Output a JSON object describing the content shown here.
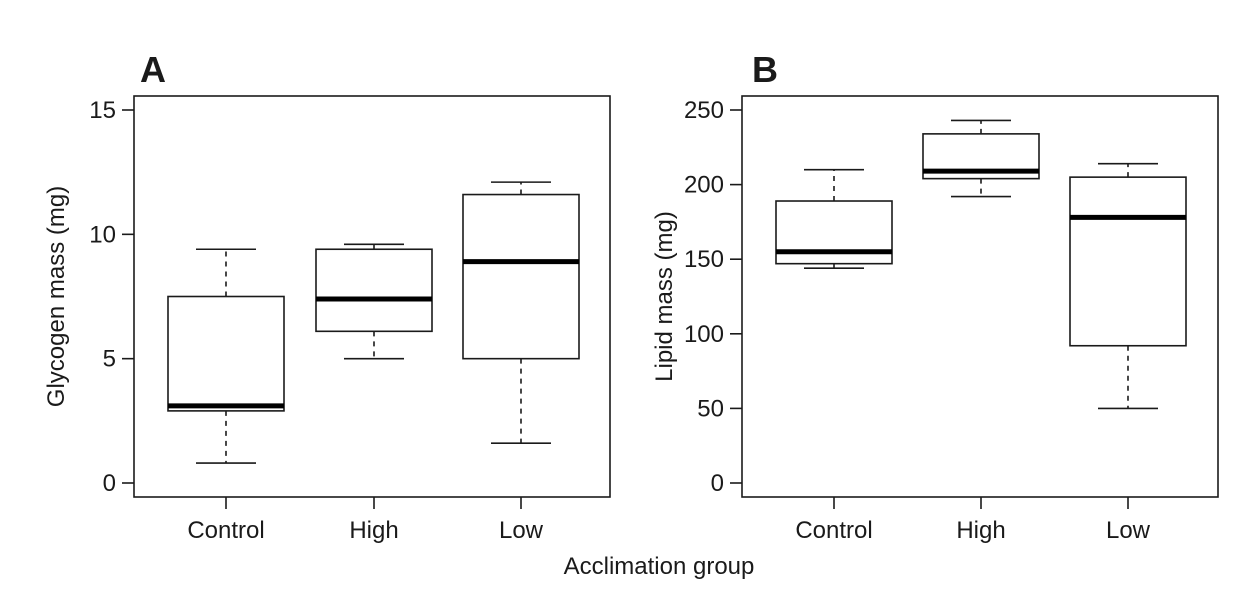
{
  "figure": {
    "shared_xlabel": "Acclimation group"
  },
  "chart_data": [
    {
      "type": "box",
      "panel_label": "A",
      "title": "",
      "xlabel": "",
      "ylabel": "Glycogen mass (mg)",
      "ylim": [
        0,
        15
      ],
      "yticks": [
        0,
        5,
        10,
        15
      ],
      "categories": [
        "Control",
        "High",
        "Low"
      ],
      "boxes": [
        {
          "min": 0.8,
          "q1": 2.9,
          "median": 3.1,
          "q3": 7.5,
          "max": 9.4
        },
        {
          "min": 5.0,
          "q1": 6.1,
          "median": 7.4,
          "q3": 9.4,
          "max": 9.6
        },
        {
          "min": 1.6,
          "q1": 5.0,
          "median": 8.9,
          "q3": 11.6,
          "max": 12.1
        }
      ],
      "grid": false
    },
    {
      "type": "box",
      "panel_label": "B",
      "title": "",
      "xlabel": "",
      "ylabel": "Lipid mass (mg)",
      "ylim": [
        0,
        250
      ],
      "yticks": [
        0,
        50,
        100,
        150,
        200,
        250
      ],
      "categories": [
        "Control",
        "High",
        "Low"
      ],
      "boxes": [
        {
          "min": 144,
          "q1": 147,
          "median": 155,
          "q3": 189,
          "max": 210
        },
        {
          "min": 192,
          "q1": 204,
          "median": 209,
          "q3": 234,
          "max": 243
        },
        {
          "min": 50,
          "q1": 92,
          "median": 178,
          "q3": 205,
          "max": 214
        }
      ],
      "grid": false
    }
  ]
}
